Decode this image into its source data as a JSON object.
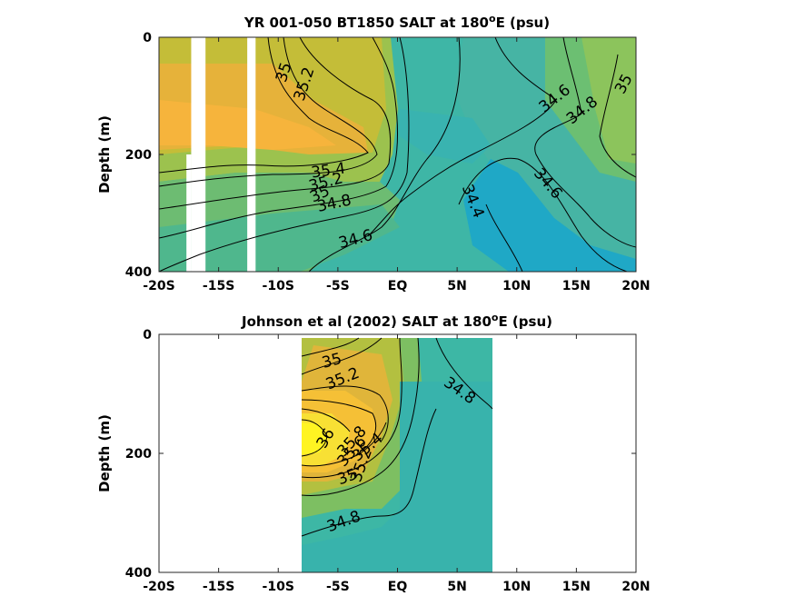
{
  "chart_data": [
    {
      "type": "heatmap",
      "title_main": "YR 001-050 BT1850 SALT at 180",
      "title_sup": "o",
      "title_end": "E (psu)",
      "ylabel": "Depth (m)",
      "xlim": [
        -20,
        20
      ],
      "ylim": [
        0,
        400
      ],
      "x_ticks": [
        {
          "value": -20,
          "label": "-20S"
        },
        {
          "value": -15,
          "label": "-15S"
        },
        {
          "value": -10,
          "label": "-10S"
        },
        {
          "value": -5,
          "label": "-5S"
        },
        {
          "value": 0,
          "label": "EQ"
        },
        {
          "value": 5,
          "label": "5N"
        },
        {
          "value": 10,
          "label": "10N"
        },
        {
          "value": 15,
          "label": "15N"
        },
        {
          "value": 20,
          "label": "20N"
        }
      ],
      "y_ticks": [
        {
          "value": 0,
          "label": "0"
        },
        {
          "value": 200,
          "label": "200"
        },
        {
          "value": 400,
          "label": "400"
        }
      ],
      "data_extent": [
        -20,
        20
      ],
      "gaps": [
        [
          -17.3,
          -16.1
        ],
        [
          -12.6,
          -11.9
        ]
      ],
      "contour_levels": [
        34.4,
        34.6,
        34.8,
        35.0,
        35.2,
        35.4,
        35.6,
        35.8,
        36.0
      ],
      "contour_labels": [
        {
          "text": "35",
          "x": -9.5,
          "y": 60,
          "angle": -72
        },
        {
          "text": "35.2",
          "x": -7.8,
          "y": 80,
          "angle": -72
        },
        {
          "text": "34.6",
          "x": 13.2,
          "y": 105,
          "angle": -38
        },
        {
          "text": "34.8",
          "x": 15.5,
          "y": 125,
          "angle": -38
        },
        {
          "text": "35",
          "x": 19.0,
          "y": 80,
          "angle": -62
        },
        {
          "text": "35.4",
          "x": -5.8,
          "y": 228,
          "angle": -8
        },
        {
          "text": "35.2",
          "x": -6.0,
          "y": 248,
          "angle": -15
        },
        {
          "text": "35",
          "x": -6.5,
          "y": 268,
          "angle": -25
        },
        {
          "text": "34.8",
          "x": -5.3,
          "y": 284,
          "angle": -12
        },
        {
          "text": "34.6",
          "x": -3.5,
          "y": 345,
          "angle": -15
        },
        {
          "text": "34.4",
          "x": 6.3,
          "y": 280,
          "angle": 68
        },
        {
          "text": "34.6",
          "x": 12.6,
          "y": 250,
          "angle": 50
        }
      ]
    },
    {
      "type": "heatmap",
      "title_main": "Johnson et al (2002) SALT at 180",
      "title_sup": "o",
      "title_end": "E (psu)",
      "ylabel": "Depth (m)",
      "xlim": [
        -20,
        20
      ],
      "ylim": [
        0,
        400
      ],
      "x_ticks": [
        {
          "value": -20,
          "label": "-20S"
        },
        {
          "value": -15,
          "label": "-15S"
        },
        {
          "value": -10,
          "label": "-10S"
        },
        {
          "value": -5,
          "label": "-5S"
        },
        {
          "value": 0,
          "label": "EQ"
        },
        {
          "value": 5,
          "label": "5N"
        },
        {
          "value": 10,
          "label": "10N"
        },
        {
          "value": 15,
          "label": "15N"
        },
        {
          "value": 20,
          "label": "20N"
        }
      ],
      "y_ticks": [
        {
          "value": 0,
          "label": "0"
        },
        {
          "value": 200,
          "label": "200"
        },
        {
          "value": 400,
          "label": "400"
        }
      ],
      "data_extent": [
        -8,
        8
      ],
      "gaps": [],
      "contour_levels": [
        34.8,
        35.0,
        35.2,
        35.4,
        35.6,
        35.8,
        36.0
      ],
      "contour_labels": [
        {
          "text": "35",
          "x": -5.5,
          "y": 45,
          "angle": -15
        },
        {
          "text": "35.2",
          "x": -4.6,
          "y": 75,
          "angle": -22
        },
        {
          "text": "34.8",
          "x": 5.2,
          "y": 95,
          "angle": 35
        },
        {
          "text": "36",
          "x": -6.0,
          "y": 175,
          "angle": -60
        },
        {
          "text": "35.8",
          "x": -3.8,
          "y": 180,
          "angle": -48
        },
        {
          "text": "35.6",
          "x": -3.8,
          "y": 197,
          "angle": -48
        },
        {
          "text": "35.4",
          "x": -2.5,
          "y": 190,
          "angle": -40
        },
        {
          "text": "35.2",
          "x": -3.0,
          "y": 220,
          "angle": -70
        },
        {
          "text": "35",
          "x": -4.2,
          "y": 240,
          "angle": -20
        },
        {
          "text": "34.8",
          "x": -4.5,
          "y": 315,
          "angle": -20
        }
      ]
    }
  ]
}
